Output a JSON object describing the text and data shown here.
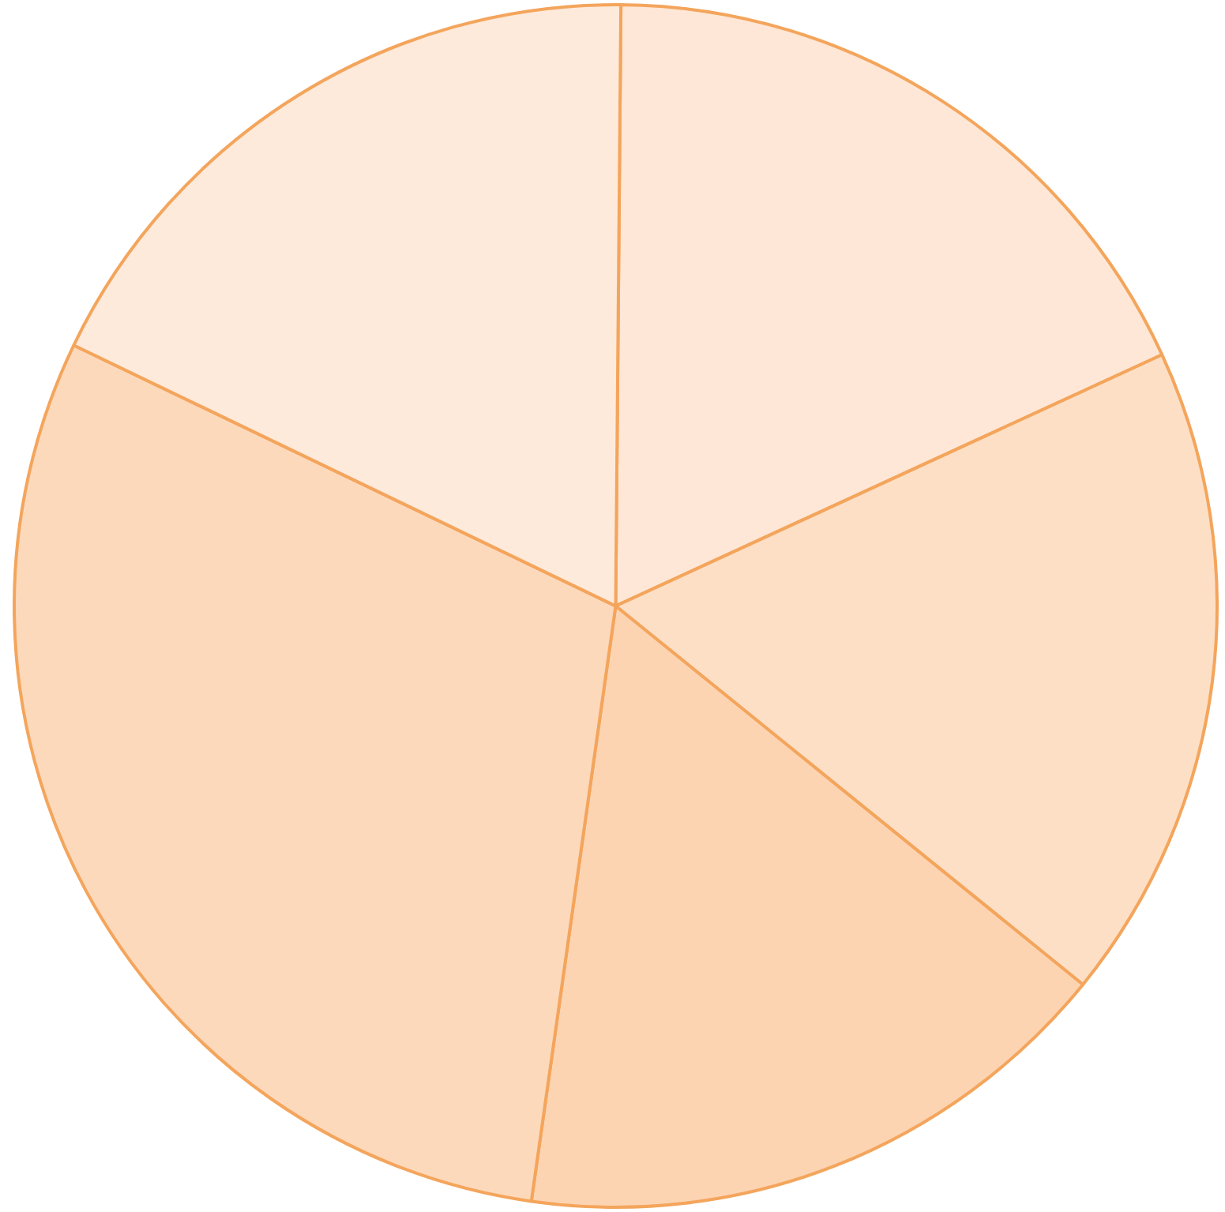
{
  "chart_data": {
    "type": "pie",
    "categories": [
      null,
      null,
      null,
      null,
      null
    ],
    "values": [
      18.0,
      17.7,
      16.4,
      29.9,
      18.0
    ],
    "colors": [
      "#fee7d6",
      "#fddfc6",
      "#fdd4b2",
      "#fdd9bc",
      "#feeadb"
    ],
    "legend": false
  }
}
